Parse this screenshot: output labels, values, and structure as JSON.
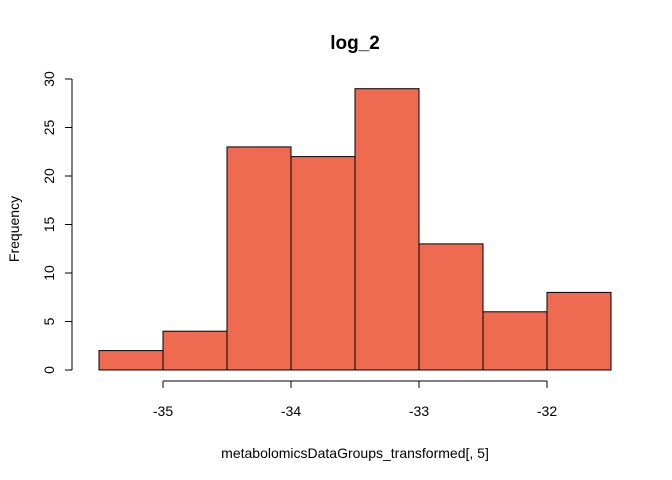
{
  "chart_data": {
    "type": "bar",
    "title": "log_2",
    "xlabel": "metabolomicsDataGroups_transformed[, 5]",
    "ylabel": "Frequency",
    "bins": [
      {
        "x0": -35.5,
        "x1": -35.0,
        "count": 2
      },
      {
        "x0": -35.0,
        "x1": -34.5,
        "count": 4
      },
      {
        "x0": -34.5,
        "x1": -34.0,
        "count": 23
      },
      {
        "x0": -34.0,
        "x1": -33.5,
        "count": 22
      },
      {
        "x0": -33.5,
        "x1": -33.0,
        "count": 29
      },
      {
        "x0": -33.0,
        "x1": -32.5,
        "count": 13
      },
      {
        "x0": -32.5,
        "x1": -32.0,
        "count": 6
      },
      {
        "x0": -32.0,
        "x1": -31.5,
        "count": 8
      }
    ],
    "xticks": [
      -35,
      -34,
      -33,
      -32
    ],
    "xtick_labels": [
      "-35",
      "-34",
      "-33",
      "-32"
    ],
    "yticks": [
      0,
      5,
      10,
      15,
      20,
      25,
      30
    ],
    "ytick_labels": [
      "0",
      "5",
      "10",
      "15",
      "20",
      "25",
      "30"
    ],
    "xlim": [
      -35.5,
      -31.5
    ],
    "ylim": [
      0,
      30
    ],
    "bar_color": "#EE6A50",
    "grid": false,
    "legend": "none"
  }
}
